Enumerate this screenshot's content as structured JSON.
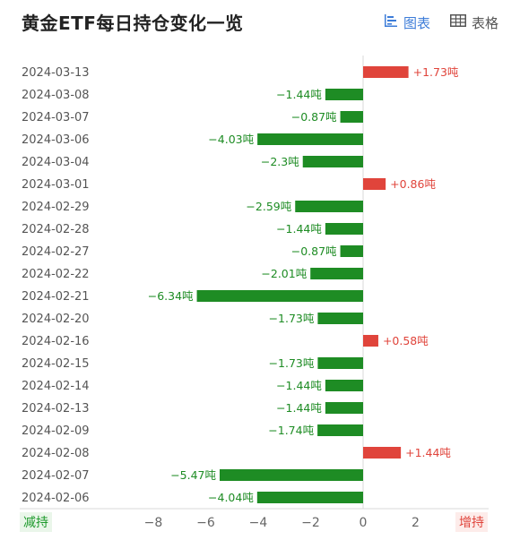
{
  "header": {
    "title": "黄金ETF每日持仓变化一览",
    "chart_tab_label": "图表",
    "table_tab_label": "表格",
    "chart_tab_icon": "bar-chart-icon",
    "table_tab_icon": "table-icon",
    "active_color": "#3c7cd8"
  },
  "footer": {
    "reduce_label": "减持",
    "increase_label": "增持"
  },
  "colors": {
    "increase": "#e0443b",
    "decrease": "#1e8c24",
    "increase_text": "#e0443b",
    "decrease_text": "#1e8c24"
  },
  "chart_data": {
    "type": "bar",
    "orientation": "horizontal",
    "categories": [
      "2024-03-13",
      "2024-03-08",
      "2024-03-07",
      "2024-03-06",
      "2024-03-04",
      "2024-03-01",
      "2024-02-29",
      "2024-02-28",
      "2024-02-27",
      "2024-02-22",
      "2024-02-21",
      "2024-02-20",
      "2024-02-16",
      "2024-02-15",
      "2024-02-14",
      "2024-02-13",
      "2024-02-09",
      "2024-02-08",
      "2024-02-07",
      "2024-02-06"
    ],
    "values": [
      1.73,
      -1.44,
      -0.87,
      -4.03,
      -2.3,
      0.86,
      -2.59,
      -1.44,
      -0.87,
      -2.01,
      -6.34,
      -1.73,
      0.58,
      -1.73,
      -1.44,
      -1.44,
      -1.74,
      1.44,
      -5.47,
      -4.04
    ],
    "data_labels": [
      "+1.73吨",
      "−1.44吨",
      "−0.87吨",
      "−4.03吨",
      "−2.3吨",
      "+0.86吨",
      "−2.59吨",
      "−1.44吨",
      "−0.87吨",
      "−2.01吨",
      "−6.34吨",
      "−1.73吨",
      "+0.58吨",
      "−1.73吨",
      "−1.44吨",
      "−1.44吨",
      "−1.74吨",
      "+1.44吨",
      "−5.47吨",
      "−4.04吨"
    ],
    "x_ticks": [
      -8,
      -6,
      -4,
      -2,
      0,
      2
    ],
    "x_tick_labels": [
      "−8",
      "−6",
      "−4",
      "−2",
      "0",
      "2"
    ],
    "xlim": [
      -8,
      2
    ],
    "title": "黄金ETF每日持仓变化一览",
    "xlabel": "",
    "ylabel": ""
  }
}
